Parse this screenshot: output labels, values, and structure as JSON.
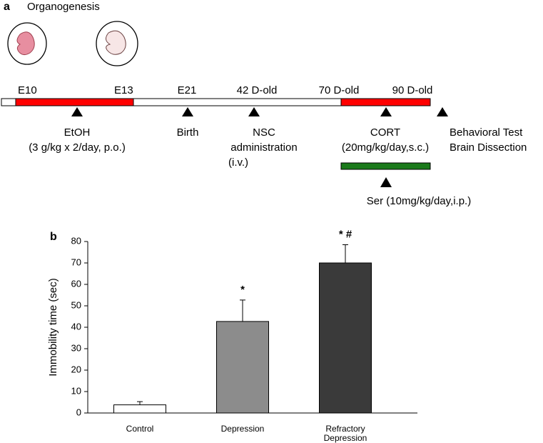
{
  "panel_a": {
    "label": "a",
    "title": "Organogenesis",
    "timepoints": [
      "E10",
      "E13",
      "E21",
      "42 D-old",
      "70 D-old",
      "90 D-old"
    ],
    "events": [
      {
        "lines": [
          "EtOH",
          "(3 g/kg x 2/day, p.o.)"
        ]
      },
      {
        "lines": [
          "Birth"
        ]
      },
      {
        "lines": [
          "NSC",
          "administration",
          "(i.v.)"
        ]
      },
      {
        "lines": [
          "CORT",
          "(20mg/kg/day,s.c.)"
        ]
      },
      {
        "lines": [
          "Behavioral Test",
          "Brain Dissection"
        ]
      },
      {
        "lines": [
          "Ser (10mg/kg/day,i.p.)"
        ]
      }
    ]
  },
  "chart_data": {
    "type": "bar",
    "panel_label": "b",
    "ylabel": "Immobility time (sec)",
    "categories": [
      "Control",
      "Depression",
      "Refractory Depression"
    ],
    "values": [
      3.8,
      42.7,
      70
    ],
    "errors": [
      1.5,
      10,
      8.5
    ],
    "colors": [
      "#ffffff",
      "#8c8c8c",
      "#3a3a3a"
    ],
    "annotations": [
      null,
      "*",
      "* #"
    ],
    "ylim": [
      0,
      80
    ],
    "yticks": [
      0,
      10,
      20,
      30,
      40,
      50,
      60,
      70,
      80
    ]
  }
}
